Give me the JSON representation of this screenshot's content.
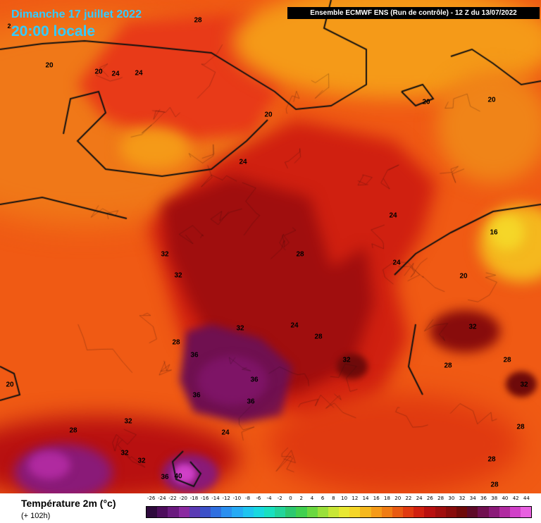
{
  "header": {
    "date_line": "Dimanche 17 juillet 2022",
    "time_line": "20:00 locale",
    "model_line": "Ensemble ECMWF ENS  (Run de contrôle)  -  12 Z du 13/07/2022"
  },
  "legend": {
    "variable": "Température 2m (°c)",
    "lead_time": "(+ 102h)",
    "ticks": [
      "-26",
      "-24",
      "-22",
      "-20",
      "-18",
      "-16",
      "-14",
      "-12",
      "-10",
      "-8",
      "-6",
      "-4",
      "-2",
      "0",
      "2",
      "4",
      "6",
      "8",
      "10",
      "12",
      "14",
      "16",
      "18",
      "20",
      "22",
      "24",
      "26",
      "28",
      "30",
      "32",
      "34",
      "36",
      "38",
      "40",
      "42",
      "44"
    ],
    "colors": [
      "#2e0a3c",
      "#4d0d5c",
      "#6a1a7e",
      "#8a2aa0",
      "#5a3ab4",
      "#3c50c8",
      "#2f6fe0",
      "#2a8ff0",
      "#26aaf5",
      "#1fc4f0",
      "#18d8e0",
      "#19e0c0",
      "#23d49a",
      "#2cc870",
      "#40d050",
      "#6ad840",
      "#9ae03a",
      "#c8e636",
      "#e8e832",
      "#f5d628",
      "#f5b81e",
      "#f59a18",
      "#f07c14",
      "#e85a12",
      "#e03a10",
      "#d02010",
      "#b81010",
      "#a00e0e",
      "#880c0c",
      "#6e0a0a",
      "#5e0a28",
      "#701050",
      "#8a1a78",
      "#b02aa0",
      "#d040c8",
      "#e860e0"
    ]
  },
  "map_labels": [
    {
      "text": "28"
    },
    {
      "text": "20"
    },
    {
      "text": "20"
    },
    {
      "text": "24"
    },
    {
      "text": "24"
    },
    {
      "text": "20"
    },
    {
      "text": "20"
    },
    {
      "text": "20"
    },
    {
      "text": "24"
    },
    {
      "text": "24"
    },
    {
      "text": "16"
    },
    {
      "text": "32"
    },
    {
      "text": "28"
    },
    {
      "text": "24"
    },
    {
      "text": "32"
    },
    {
      "text": "20"
    },
    {
      "text": "32"
    },
    {
      "text": "32"
    },
    {
      "text": "24"
    },
    {
      "text": "28"
    },
    {
      "text": "28"
    },
    {
      "text": "36"
    },
    {
      "text": "32"
    },
    {
      "text": "28"
    },
    {
      "text": "28"
    },
    {
      "text": "32"
    },
    {
      "text": "36"
    },
    {
      "text": "36"
    },
    {
      "text": "36"
    },
    {
      "text": "20"
    },
    {
      "text": "28"
    },
    {
      "text": "32"
    },
    {
      "text": "24"
    },
    {
      "text": "32"
    },
    {
      "text": "32"
    },
    {
      "text": "36"
    },
    {
      "text": "40"
    },
    {
      "text": "28"
    },
    {
      "text": "28"
    },
    {
      "text": "2"
    }
  ]
}
